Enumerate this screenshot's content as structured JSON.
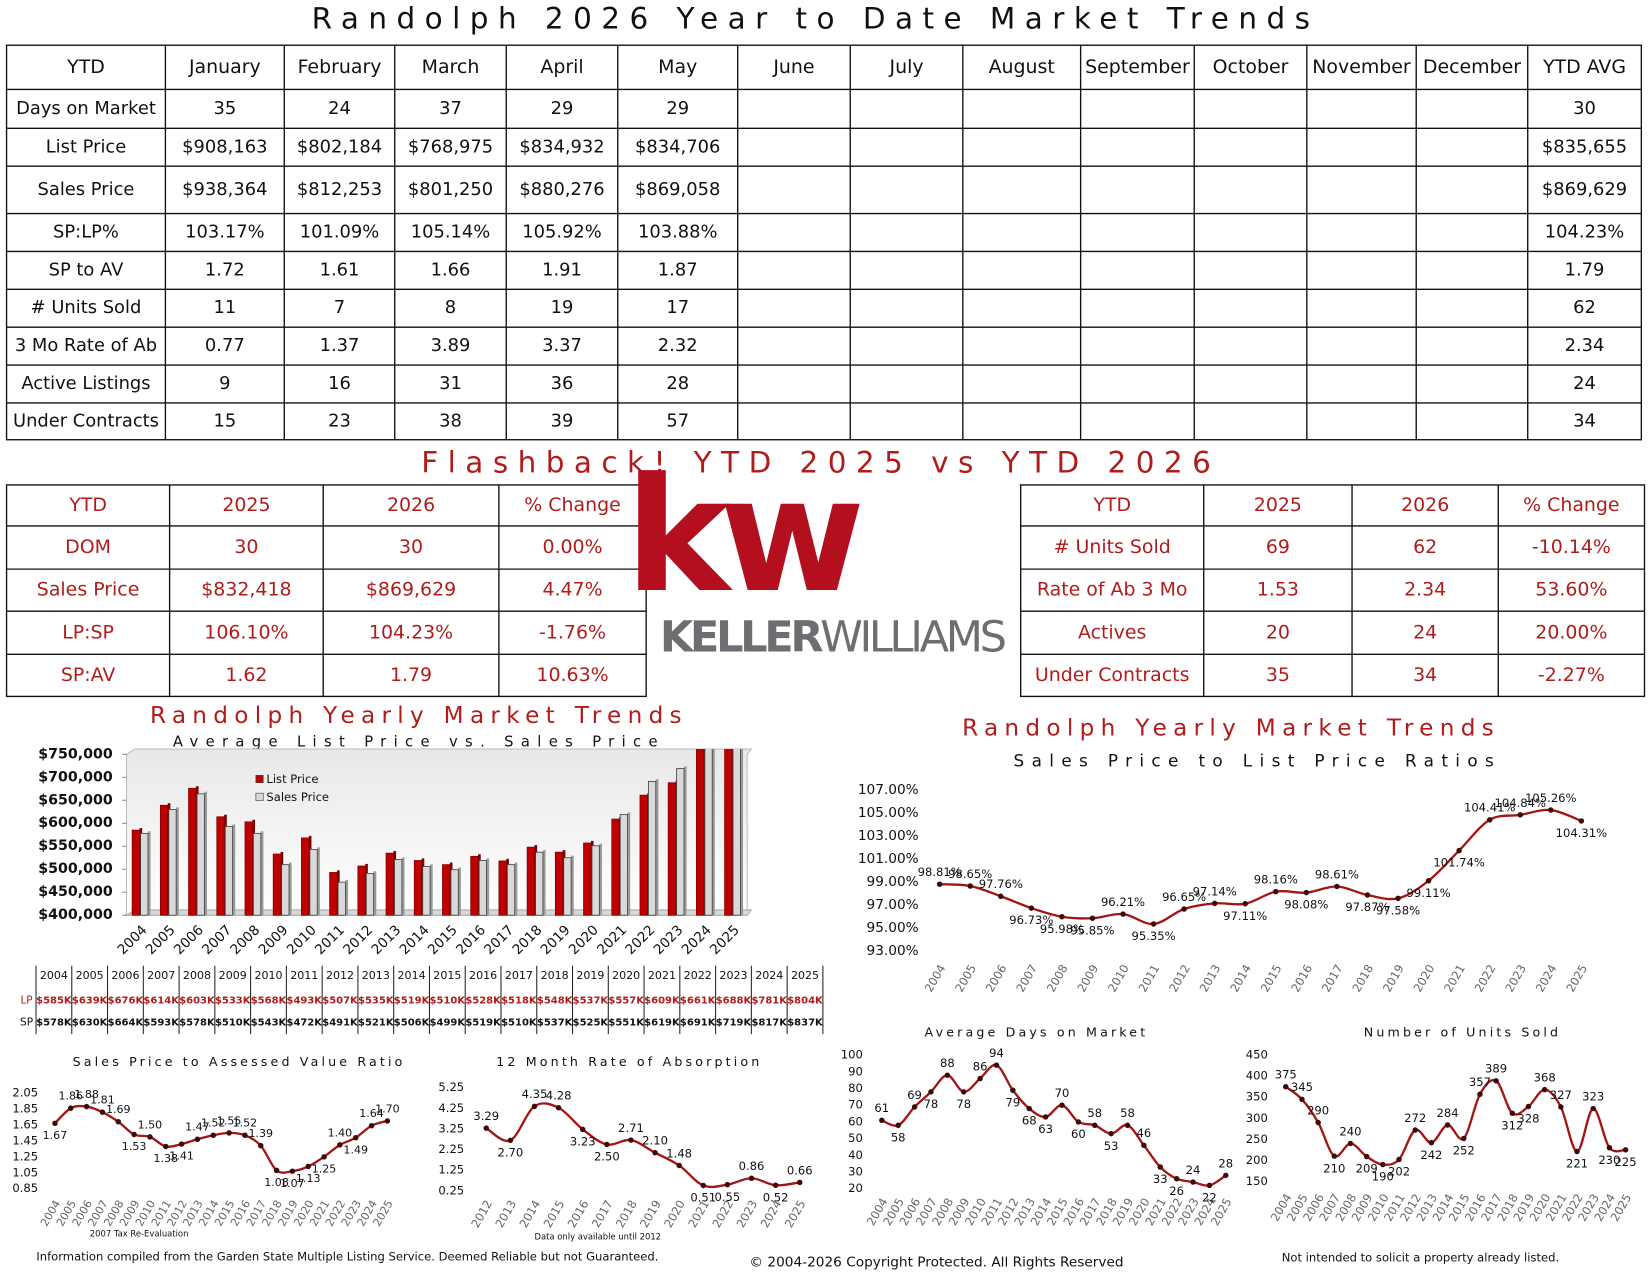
{
  "title": "Randolph 2026 Year to Date Market Trends",
  "ytd_table": {
    "header": [
      "YTD",
      "January",
      "February",
      "March",
      "April",
      "May",
      "June",
      "July",
      "August",
      "September",
      "October",
      "November",
      "December",
      "YTD AVG"
    ],
    "rows": [
      {
        "label": "Days on Market",
        "values": [
          "35",
          "24",
          "37",
          "29",
          "29"
        ],
        "avg": "30"
      },
      {
        "label": "List Price",
        "values": [
          "$908,163",
          "$802,184",
          "$768,975",
          "$834,932",
          "$834,706"
        ],
        "avg": "$835,655"
      },
      {
        "label": "Sales Price",
        "values": [
          "$938,364",
          "$812,253",
          "$801,250",
          "$880,276",
          "$869,058"
        ],
        "avg": "$869,629"
      },
      {
        "label": "SP:LP%",
        "values": [
          "103.17%",
          "101.09%",
          "105.14%",
          "105.92%",
          "103.88%"
        ],
        "avg": "104.23%"
      },
      {
        "label": "SP to AV",
        "values": [
          "1.72",
          "1.61",
          "1.66",
          "1.91",
          "1.87"
        ],
        "avg": "1.79"
      },
      {
        "label": "# Units Sold",
        "values": [
          "11",
          "7",
          "8",
          "19",
          "17"
        ],
        "avg": "62"
      },
      {
        "label": "3 Mo Rate of Ab",
        "values": [
          "0.77",
          "1.37",
          "3.89",
          "3.37",
          "2.32"
        ],
        "avg": "2.34"
      },
      {
        "label": "Active Listings",
        "values": [
          "9",
          "16",
          "31",
          "36",
          "28"
        ],
        "avg": "24"
      },
      {
        "label": "Under Contracts",
        "values": [
          "15",
          "23",
          "38",
          "39",
          "57"
        ],
        "avg": "34"
      }
    ]
  },
  "flashback_title": "Flashback!  YTD 2025 vs YTD 2026",
  "flashback_left": {
    "header": [
      "YTD",
      "2025",
      "2026",
      "% Change"
    ],
    "rows": [
      [
        "DOM",
        "30",
        "30",
        "0.00%"
      ],
      [
        "Sales Price",
        "$832,418",
        "$869,629",
        "4.47%"
      ],
      [
        "LP:SP",
        "106.10%",
        "104.23%",
        "-1.76%"
      ],
      [
        "SP:AV",
        "1.62",
        "1.79",
        "10.63%"
      ]
    ]
  },
  "flashback_right": {
    "header": [
      "YTD",
      "2025",
      "2026",
      "% Change"
    ],
    "rows": [
      [
        "# Units Sold",
        "69",
        "62",
        "-10.14%"
      ],
      [
        "Rate of Ab 3 Mo",
        "1.53",
        "2.34",
        "53.60%"
      ],
      [
        "Actives",
        "20",
        "24",
        "20.00%"
      ],
      [
        "Under Contracts",
        "35",
        "34",
        "-2.27%"
      ]
    ]
  },
  "logo": {
    "mark": "kw",
    "name_a": "KELLER",
    "name_b": "WILLIAMS"
  },
  "chart_data": [
    {
      "type": "bar",
      "title": "Randolph Yearly Market Trends",
      "subtitle": "Average List Price vs. Sales Price",
      "categories": [
        "2004",
        "2005",
        "2006",
        "2007",
        "2008",
        "2009",
        "2010",
        "2011",
        "2012",
        "2013",
        "2014",
        "2015",
        "2016",
        "2017",
        "2018",
        "2019",
        "2020",
        "2021",
        "2022",
        "2023",
        "2024",
        "2025"
      ],
      "series": [
        {
          "name": "List Price",
          "short": "LP",
          "color": "#c00000",
          "values": [
            585000,
            639000,
            676000,
            614000,
            603000,
            533000,
            568000,
            493000,
            507000,
            535000,
            519000,
            510000,
            528000,
            518000,
            548000,
            537000,
            557000,
            609000,
            661000,
            688000,
            781000,
            804000
          ],
          "value_labels": [
            "$585K",
            "$639K",
            "$676K",
            "$614K",
            "$603K",
            "$533K",
            "$568K",
            "$493K",
            "$507K",
            "$535K",
            "$519K",
            "$510K",
            "$528K",
            "$518K",
            "$548K",
            "$537K",
            "$557K",
            "$609K",
            "$661K",
            "$688K",
            "$781K",
            "$804K"
          ]
        },
        {
          "name": "Sales Price",
          "short": "SP",
          "color": "#d9d9d9",
          "values": [
            578000,
            630000,
            664000,
            593000,
            578000,
            510000,
            543000,
            472000,
            491000,
            521000,
            506000,
            499000,
            519000,
            510000,
            537000,
            525000,
            551000,
            619000,
            691000,
            719000,
            817000,
            837000
          ],
          "value_labels": [
            "$578K",
            "$630K",
            "$664K",
            "$593K",
            "$578K",
            "$510K",
            "$543K",
            "$472K",
            "$491K",
            "$521K",
            "$506K",
            "$499K",
            "$519K",
            "$510K",
            "$537K",
            "$525K",
            "$551K",
            "$619K",
            "$691K",
            "$719K",
            "$817K",
            "$837K"
          ]
        }
      ],
      "ylim": [
        400000,
        750000
      ],
      "yticks": [
        {
          "value": 400000,
          "label": "$400,000"
        },
        {
          "value": 450000,
          "label": "$450,000"
        },
        {
          "value": 500000,
          "label": "$500,000"
        },
        {
          "value": 550000,
          "label": "$550,000"
        },
        {
          "value": 600000,
          "label": "$600,000"
        },
        {
          "value": 650000,
          "label": "$650,000"
        },
        {
          "value": 700000,
          "label": "$700,000"
        },
        {
          "value": 750000,
          "label": "$750,000"
        }
      ],
      "legend": "upper left"
    },
    {
      "type": "line",
      "title": "Randolph Yearly Market Trends",
      "subtitle": "Sales Price to List Price Ratios",
      "color": "#a31515",
      "categories": [
        "2004",
        "2005",
        "2006",
        "2007",
        "2008",
        "2009",
        "2010",
        "2011",
        "2012",
        "2013",
        "2014",
        "2015",
        "2016",
        "2017",
        "2018",
        "2019",
        "2020",
        "2021",
        "2022",
        "2023",
        "2024",
        "2025"
      ],
      "values": [
        98.81,
        98.65,
        97.76,
        96.73,
        95.98,
        95.85,
        96.21,
        95.35,
        96.65,
        97.14,
        97.11,
        98.16,
        98.08,
        98.61,
        97.87,
        97.58,
        99.11,
        101.74,
        104.41,
        104.84,
        105.26,
        104.31
      ],
      "value_labels": [
        "98.81%",
        "98.65%",
        "97.76%",
        "96.73%",
        "95.98%",
        "95.85%",
        "96.21%",
        "95.35%",
        "96.65%",
        "97.14%",
        "97.11%",
        "98.16%",
        "98.08%",
        "98.61%",
        "97.87%",
        "97.58%",
        "99.11%",
        "101.74%",
        "104.41%",
        "104.84%",
        "105.26%",
        "104.31%"
      ],
      "ylim": [
        93,
        107
      ],
      "yticks": [
        {
          "value": 93,
          "label": "93.00%"
        },
        {
          "value": 95,
          "label": "95.00%"
        },
        {
          "value": 97,
          "label": "97.00%"
        },
        {
          "value": 99,
          "label": "99.00%"
        },
        {
          "value": 101,
          "label": "101.00%"
        },
        {
          "value": 103,
          "label": "103.00%"
        },
        {
          "value": 105,
          "label": "105.00%"
        },
        {
          "value": 107,
          "label": "107.00%"
        }
      ]
    },
    {
      "type": "line",
      "title": "Sales Price to Assessed Value Ratio",
      "note": "2007 Tax Re-Evaluation",
      "color": "#a31515",
      "categories": [
        "2004",
        "2005",
        "2006",
        "2007",
        "2008",
        "2009",
        "2010",
        "2011",
        "2012",
        "2013",
        "2014",
        "2015",
        "2016",
        "2017",
        "2018",
        "2019",
        "2020",
        "2021",
        "2022",
        "2023",
        "2024",
        "2025"
      ],
      "values": [
        1.67,
        1.86,
        1.88,
        1.81,
        1.69,
        1.53,
        1.5,
        1.38,
        1.41,
        1.47,
        1.52,
        1.55,
        1.52,
        1.39,
        1.08,
        1.07,
        1.13,
        1.25,
        1.4,
        1.49,
        1.64,
        1.7
      ],
      "value_labels": [
        "1.67",
        "1.86",
        "1.88",
        "1.81",
        "1.69",
        "1.53",
        "1.50",
        "1.38",
        "1.41",
        "1.47",
        "1.52",
        "1.55",
        "1.52",
        "1.39",
        "1.08",
        "1.07",
        "1.13",
        "1.25",
        "1.40",
        "1.49",
        "1.64",
        "1.70"
      ],
      "ylim": [
        0.85,
        2.05
      ],
      "yticks": [
        0.85,
        1.05,
        1.25,
        1.45,
        1.65,
        1.85,
        2.05
      ]
    },
    {
      "type": "line",
      "title": "12 Month Rate of Absorption",
      "note": "Data only available until 2012",
      "color": "#a31515",
      "categories": [
        "2012",
        "2013",
        "2014",
        "2015",
        "2016",
        "2017",
        "2018",
        "2019",
        "2020",
        "2021",
        "2022",
        "2023",
        "2024",
        "2025"
      ],
      "values": [
        3.29,
        2.7,
        4.35,
        4.28,
        3.23,
        2.5,
        2.71,
        2.1,
        1.48,
        0.51,
        0.55,
        0.86,
        0.52,
        0.66
      ],
      "value_labels": [
        "3.29",
        "2.70",
        "4.35",
        "4.28",
        "3.23",
        "2.50",
        "2.71",
        "2.10",
        "1.48",
        "0.51",
        "0.55",
        "0.86",
        "0.52",
        "0.66"
      ],
      "ylim": [
        0.25,
        5.25
      ],
      "yticks": [
        0.25,
        1.25,
        2.25,
        3.25,
        4.25,
        5.25
      ]
    },
    {
      "type": "line",
      "title": "Average Days on Market",
      "color": "#a31515",
      "categories": [
        "2004",
        "2005",
        "2006",
        "2007",
        "2008",
        "2009",
        "2010",
        "2011",
        "2012",
        "2013",
        "2014",
        "2015",
        "2016",
        "2017",
        "2018",
        "2019",
        "2020",
        "2021",
        "2022",
        "2023",
        "2024",
        "2025"
      ],
      "values": [
        61,
        58,
        69,
        78,
        88,
        78,
        86,
        94,
        79,
        68,
        63,
        70,
        60,
        58,
        53,
        58,
        46,
        33,
        26,
        24,
        22,
        28
      ],
      "ylim": [
        20,
        100
      ],
      "yticks": [
        20,
        30,
        40,
        50,
        60,
        70,
        80,
        90,
        100
      ]
    },
    {
      "type": "line",
      "title": "Number of Units Sold",
      "color": "#a31515",
      "categories": [
        "2004",
        "2005",
        "2006",
        "2007",
        "2008",
        "2009",
        "2010",
        "2011",
        "2012",
        "2013",
        "2014",
        "2015",
        "2016",
        "2017",
        "2018",
        "2019",
        "2020",
        "2021",
        "2022",
        "2023",
        "2024",
        "2025"
      ],
      "values": [
        375,
        345,
        290,
        210,
        240,
        209,
        190,
        202,
        272,
        242,
        284,
        252,
        357,
        389,
        312,
        328,
        368,
        327,
        221,
        323,
        230,
        225
      ],
      "ylim": [
        150,
        450
      ],
      "yticks": [
        150,
        200,
        250,
        300,
        350,
        400,
        450
      ]
    }
  ],
  "footer": {
    "left": "Information compiled from the Garden State Multiple Listing Service.  Deemed Reliable but not Guaranteed.",
    "center": "© 2004-2026 Copyright Protected.  All Rights Reserved",
    "right": "Not intended to solicit a property already listed."
  }
}
